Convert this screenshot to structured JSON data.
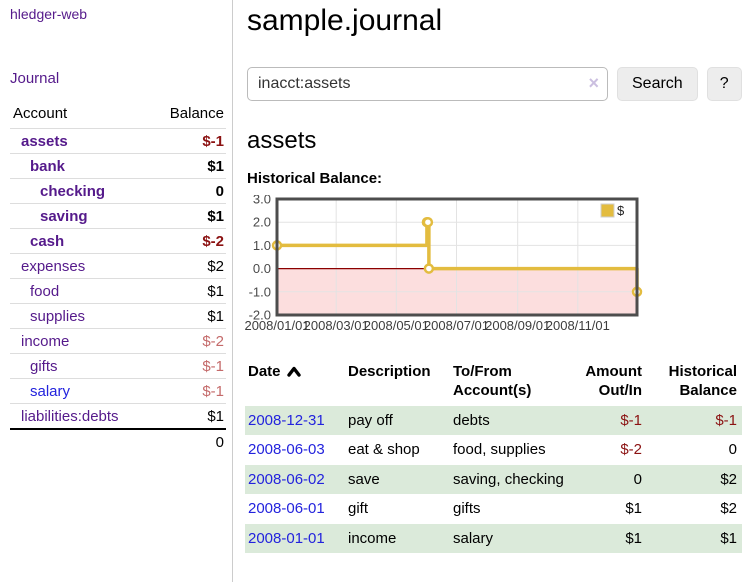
{
  "sidebar": {
    "brand": "hledger-web",
    "journal_link": "Journal",
    "table": {
      "account_header": "Account",
      "balance_header": "Balance",
      "rows": [
        {
          "name": "assets",
          "balance": "$-1",
          "indent": 0,
          "bold": true,
          "neg": "strong"
        },
        {
          "name": "bank",
          "balance": "$1",
          "indent": 1,
          "bold": true,
          "neg": null
        },
        {
          "name": "checking",
          "balance": "0",
          "indent": 2,
          "bold": true,
          "neg": null
        },
        {
          "name": "saving",
          "balance": "$1",
          "indent": 2,
          "bold": true,
          "neg": null
        },
        {
          "name": "cash",
          "balance": "$-2",
          "indent": 1,
          "bold": true,
          "neg": "strong"
        },
        {
          "name": "expenses",
          "balance": "$2",
          "indent": 0,
          "bold": false,
          "neg": null
        },
        {
          "name": "food",
          "balance": "$1",
          "indent": 1,
          "bold": false,
          "neg": null
        },
        {
          "name": "supplies",
          "balance": "$1",
          "indent": 1,
          "bold": false,
          "neg": null
        },
        {
          "name": "income",
          "balance": "$-2",
          "indent": 0,
          "bold": false,
          "neg": "soft"
        },
        {
          "name": "gifts",
          "balance": "$-1",
          "indent": 1,
          "bold": false,
          "neg": "soft"
        },
        {
          "name": "salary",
          "balance": "$-1",
          "indent": 1,
          "bold": false,
          "neg": "soft",
          "blue": true
        },
        {
          "name": "liabilities:debts",
          "balance": "$1",
          "indent": 0,
          "bold": false,
          "neg": null
        }
      ],
      "total": "0"
    }
  },
  "main": {
    "title": "sample.journal",
    "search": {
      "value": "inacct:assets",
      "clear_icon": "×",
      "search_button": "Search",
      "help_button": "?"
    },
    "account_heading": "assets",
    "chart_heading": "Historical Balance:"
  },
  "chart_data": {
    "type": "line",
    "title": "Historical Balance of assets",
    "step": true,
    "series": [
      {
        "name": "$",
        "color": "#E3BC3F",
        "points": [
          [
            "2008-01-01",
            1
          ],
          [
            "2008-06-01",
            2
          ],
          [
            "2008-06-02",
            2
          ],
          [
            "2008-06-03",
            0
          ],
          [
            "2008-12-31",
            -1
          ]
        ]
      }
    ],
    "x_ticks": [
      "2008/01/01",
      "2008/03/01",
      "2008/05/01",
      "2008/07/01",
      "2008/09/01",
      "2008/11/01"
    ],
    "y_ticks": [
      "3.0",
      "2.0",
      "1.0",
      "0.0",
      "-1.0",
      "-2.0"
    ],
    "xlim": [
      "2008-01-01",
      "2008-12-31"
    ],
    "ylim": [
      -2,
      3
    ],
    "grid": true,
    "negative_region_fill": "#FCDEDE",
    "zero_line_color": "#8B0000",
    "legend": {
      "label": "$",
      "position": "top-right"
    }
  },
  "register": {
    "headers": {
      "date": "Date",
      "description": "Description",
      "tofrom": "To/From Account(s)",
      "amount": "Amount Out/In",
      "historical": "Historical Balance"
    },
    "sort": {
      "column": "date",
      "direction": "ascending"
    },
    "rows": [
      {
        "date": "2008-12-31",
        "description": "pay off",
        "accounts": "debts",
        "amount": "$-1",
        "amount_neg": true,
        "balance": "$-1",
        "balance_neg": true
      },
      {
        "date": "2008-06-03",
        "description": "eat & shop",
        "accounts": "food, supplies",
        "amount": "$-2",
        "amount_neg": true,
        "balance": "0",
        "balance_neg": false
      },
      {
        "date": "2008-06-02",
        "description": "save",
        "accounts": "saving, checking",
        "amount": "0",
        "amount_neg": false,
        "balance": "$2",
        "balance_neg": false
      },
      {
        "date": "2008-06-01",
        "description": "gift",
        "accounts": "gifts",
        "amount": "$1",
        "amount_neg": false,
        "balance": "$2",
        "balance_neg": false
      },
      {
        "date": "2008-01-01",
        "description": "income",
        "accounts": "salary",
        "amount": "$1",
        "amount_neg": false,
        "balance": "$1",
        "balance_neg": false
      }
    ]
  },
  "colors": {
    "purple_link": "#551A8B",
    "blue_link": "#2323DD",
    "negative_strong": "#8B1212",
    "negative_soft": "#C46A6A",
    "row_stripe_green": "#DBEADA",
    "chart_line_gold": "#E3BC3F",
    "chart_negative_fill": "#FCDEDE",
    "chart_zero_line": "#8B0000",
    "divider_gray": "#CCCCCC"
  }
}
